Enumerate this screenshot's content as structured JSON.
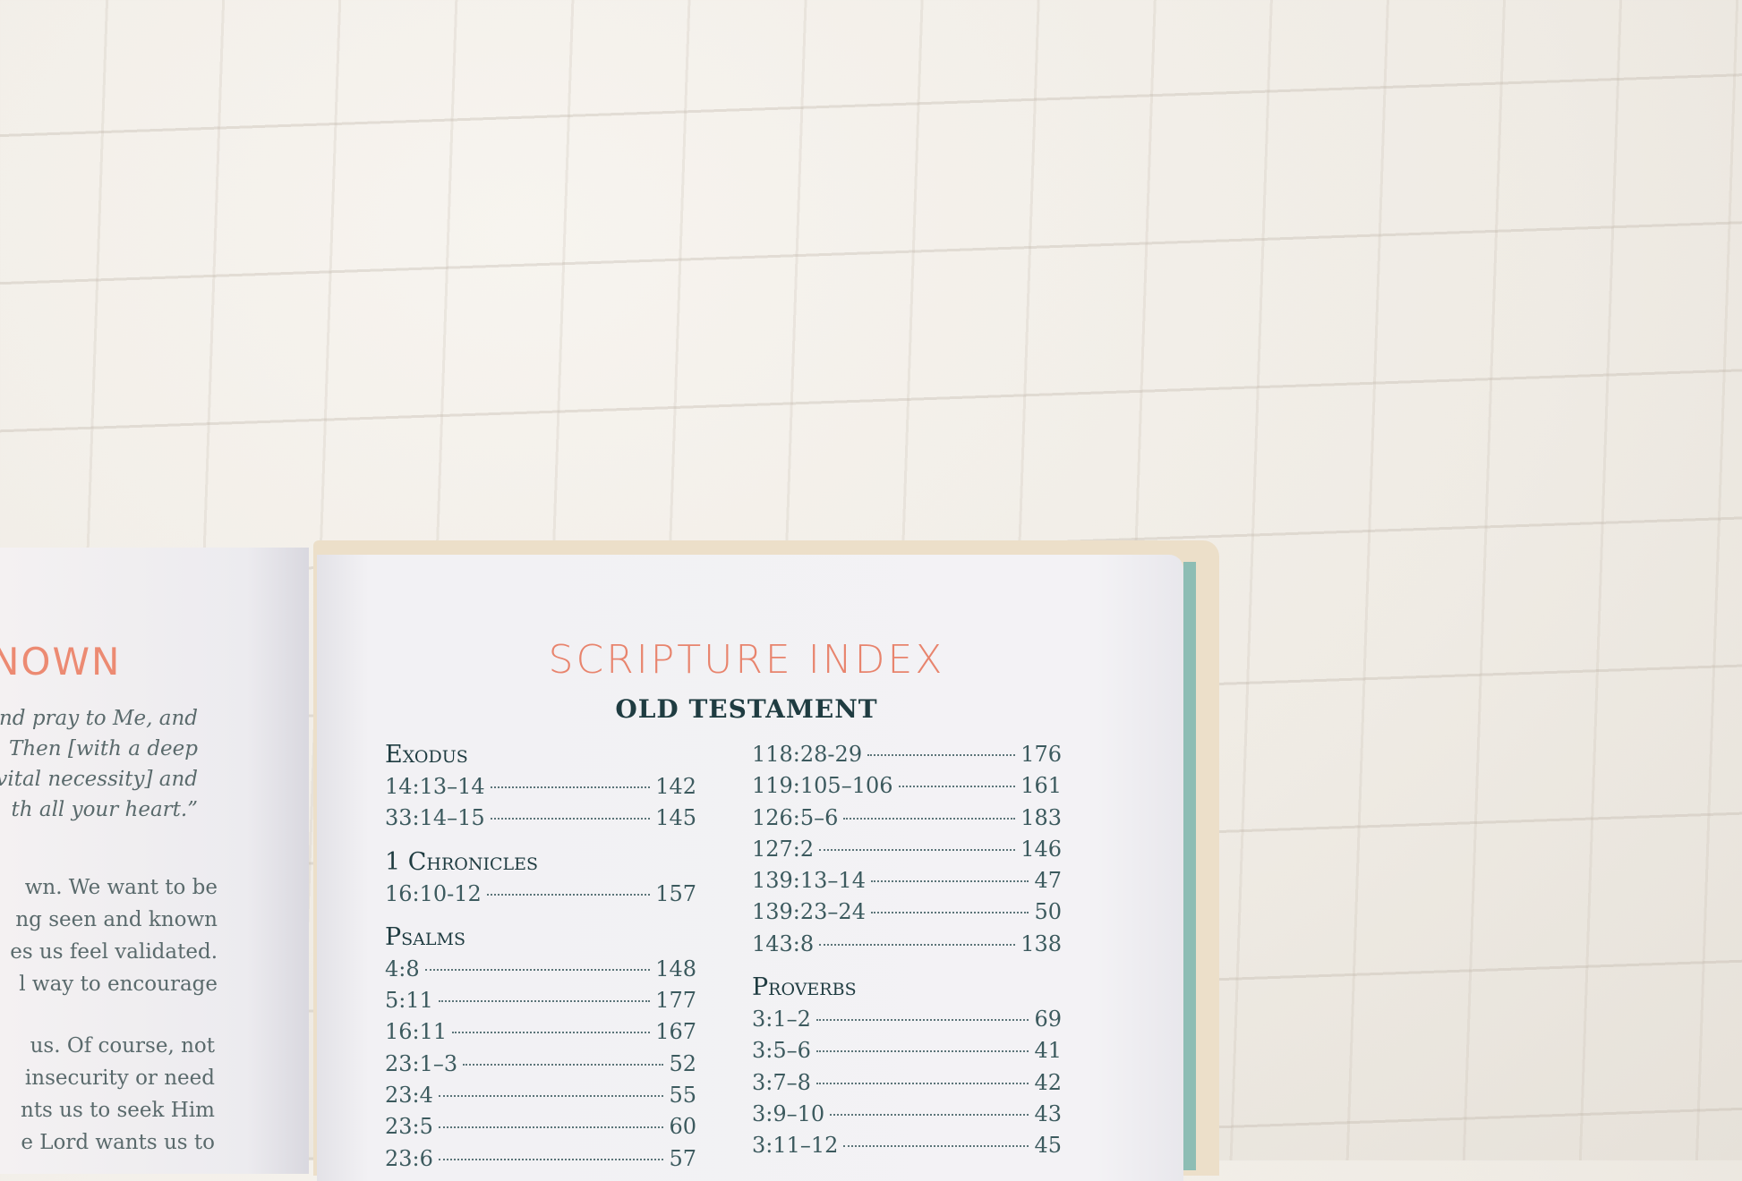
{
  "left_page": {
    "heading": "NOWN",
    "quote_lines": [
      "nd pray to Me, and",
      "Then [with a deep",
      "vital necessity] and",
      "th all your heart.”"
    ],
    "body_lines_1": [
      "wn. We want to be",
      "ng seen and known",
      "es us feel validated.",
      "l way to encourage"
    ],
    "body_lines_2": [
      "us. Of course, not",
      "insecurity or need",
      "nts us to seek Him",
      "e Lord wants us to"
    ]
  },
  "right_page": {
    "title": "SCRIPTURE INDEX",
    "subtitle": "OLD TESTAMENT",
    "left_column": [
      {
        "book": "Exodus",
        "entries": [
          {
            "ref": "14:13–14",
            "page": "142"
          },
          {
            "ref": "33:14–15",
            "page": "145"
          }
        ]
      },
      {
        "book": "1 Chronicles",
        "entries": [
          {
            "ref": "16:10-12",
            "page": "157"
          }
        ]
      },
      {
        "book": "Psalms",
        "entries": [
          {
            "ref": "4:8",
            "page": "148"
          },
          {
            "ref": "5:11",
            "page": "177"
          },
          {
            "ref": "16:11",
            "page": "167"
          },
          {
            "ref": "23:1–3",
            "page": "52"
          },
          {
            "ref": "23:4",
            "page": "55"
          },
          {
            "ref": "23:5",
            "page": "60"
          },
          {
            "ref": "23:6",
            "page": "57"
          }
        ]
      }
    ],
    "right_column": [
      {
        "book": "",
        "entries": [
          {
            "ref": "118:28-29",
            "page": "176"
          },
          {
            "ref": "119:105–106",
            "page": "161"
          },
          {
            "ref": "126:5–6",
            "page": "183"
          },
          {
            "ref": "127:2",
            "page": "146"
          },
          {
            "ref": "139:13–14",
            "page": "47"
          },
          {
            "ref": "139:23–24",
            "page": "50"
          },
          {
            "ref": "143:8",
            "page": "138"
          }
        ]
      },
      {
        "book": "Proverbs",
        "entries": [
          {
            "ref": "3:1–2",
            "page": "69"
          },
          {
            "ref": "3:5–6",
            "page": "41"
          },
          {
            "ref": "3:7–8",
            "page": "42"
          },
          {
            "ref": "3:9–10",
            "page": "43"
          },
          {
            "ref": "3:11–12",
            "page": "45"
          }
        ]
      }
    ]
  },
  "colors": {
    "title": "#e8846d",
    "text": "#1f3c41",
    "book_edge": "#8dbdb4",
    "background": "#efebe4"
  }
}
